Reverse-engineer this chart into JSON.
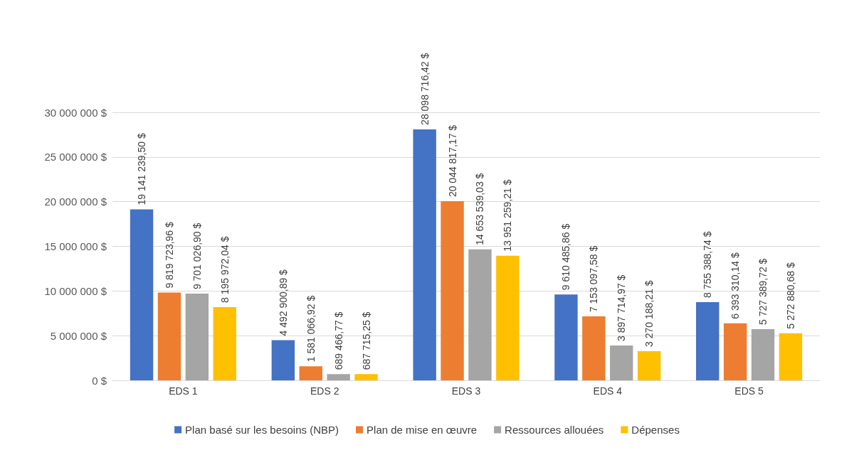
{
  "chart_data": {
    "type": "bar",
    "categories": [
      "EDS 1",
      "EDS 2",
      "EDS 3",
      "EDS 4",
      "EDS 5"
    ],
    "series": [
      {
        "name": "Plan basé sur les besoins (NBP)",
        "color": "#4472c4",
        "values": [
          19141239.5,
          4492900.89,
          28098716.42,
          9610485.86,
          8755388.74
        ],
        "value_labels": [
          "19 141 239,50 $",
          "4 492 900,89 $",
          "28 098 716,42 $",
          "9 610 485,86 $",
          "8 755 388,74 $"
        ]
      },
      {
        "name": "Plan de mise en œuvre",
        "color": "#ed7d31",
        "values": [
          9819723.96,
          1581066.92,
          20044817.17,
          7153097.58,
          6393310.14
        ],
        "value_labels": [
          "9 819 723,96 $",
          "1 581 066,92 $",
          "20 044 817,17 $",
          "7 153 097,58 $",
          "6 393 310,14 $"
        ]
      },
      {
        "name": "Ressources allouées",
        "color": "#a5a5a5",
        "values": [
          9701026.9,
          689466.77,
          14653539.03,
          3897714.97,
          5727389.72
        ],
        "value_labels": [
          "9 701 026,90 $",
          "689 466,77 $",
          "14 653 539,03 $",
          "3 897 714,97 $",
          "5 727 389,72 $"
        ]
      },
      {
        "name": "Dépenses",
        "color": "#ffc000",
        "values": [
          8195972.04,
          687715.25,
          13951259.21,
          3270188.21,
          5272880.68
        ],
        "value_labels": [
          "8 195 972,04 $",
          "687 715,25 $",
          "13 951 259,21 $",
          "3 270 188,21 $",
          "5 272 880,68 $"
        ]
      }
    ],
    "ylim": [
      0,
      30000000
    ],
    "yticks": [
      {
        "value": 0,
        "label": "0 $"
      },
      {
        "value": 5000000,
        "label": "5 000 000 $"
      },
      {
        "value": 10000000,
        "label": "10 000 000 $"
      },
      {
        "value": 15000000,
        "label": "15 000 000 $"
      },
      {
        "value": 20000000,
        "label": "20 000 000 $"
      },
      {
        "value": 25000000,
        "label": "25 000 000 $"
      },
      {
        "value": 30000000,
        "label": "30 000 000 $"
      }
    ],
    "grid": "y",
    "legend": "bottom"
  }
}
